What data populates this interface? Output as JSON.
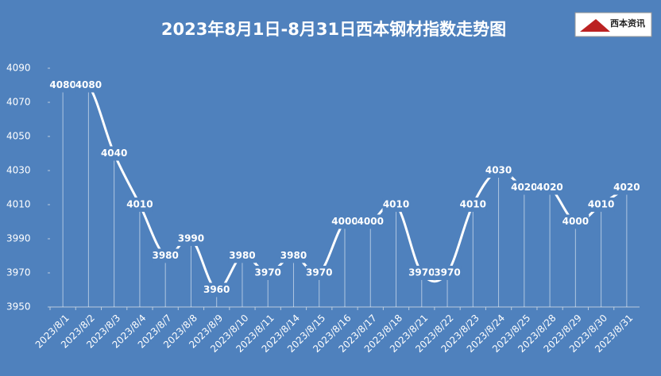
{
  "chart_data": {
    "type": "line",
    "title": "2023年8月1日-8月31日西本钢材指数走势图",
    "logo": "西本资讯",
    "categories": [
      "2023/8/1",
      "2023/8/2",
      "2023/8/3",
      "2023/8/4",
      "2023/8/7",
      "2023/8/8",
      "2023/8/9",
      "2023/8/10",
      "2023/8/11",
      "2023/8/14",
      "2023/8/15",
      "2023/8/16",
      "2023/8/17",
      "2023/8/18",
      "2023/8/21",
      "2023/8/22",
      "2023/8/23",
      "2023/8/24",
      "2023/8/25",
      "2023/8/28",
      "2023/8/29",
      "2023/8/30",
      "2023/8/31"
    ],
    "values": [
      4080,
      4080,
      4040,
      4010,
      3980,
      3990,
      3960,
      3980,
      3970,
      3980,
      3970,
      4000,
      4000,
      4010,
      3970,
      3970,
      4010,
      4030,
      4020,
      4020,
      4000,
      4010,
      4020
    ],
    "color": "#ffffff",
    "background": "#4f81bd",
    "ylim": [
      3950,
      4090
    ],
    "yticks": [
      3950,
      3970,
      3990,
      4010,
      4030,
      4050,
      4070,
      4090
    ],
    "grid": false
  }
}
